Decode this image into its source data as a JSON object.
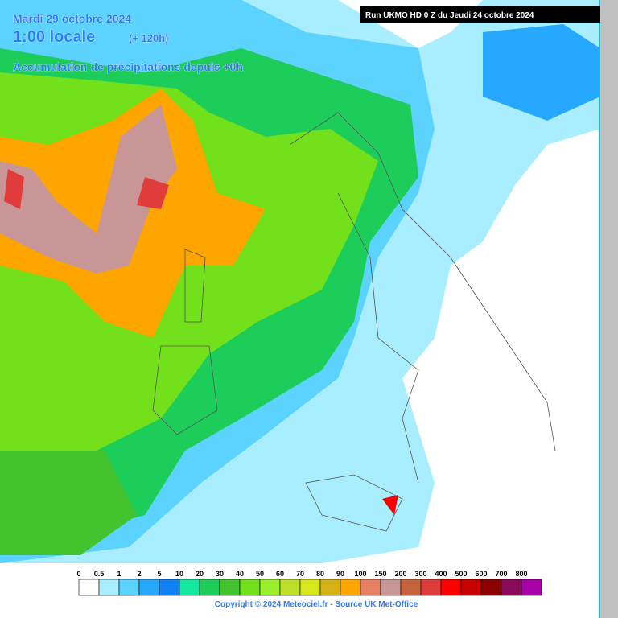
{
  "header": {
    "date": "Mardi 29 octobre 2024",
    "time": "1:00 locale",
    "offset": "(+ 120h)",
    "subtitle": "Accumulation de précipitations depuis +0h",
    "run": "Run UKMO HD 0 Z du Jeudi 24 octobre 2024"
  },
  "legend": {
    "items": [
      {
        "label": "0",
        "color": "#ffffff"
      },
      {
        "label": "0.5",
        "color": "#a8eeff"
      },
      {
        "label": "1",
        "color": "#5cd2ff"
      },
      {
        "label": "2",
        "color": "#27a8ff"
      },
      {
        "label": "5",
        "color": "#0f82f5"
      },
      {
        "label": "10",
        "color": "#15e8a0"
      },
      {
        "label": "20",
        "color": "#1ccd5a"
      },
      {
        "label": "30",
        "color": "#43c42e"
      },
      {
        "label": "40",
        "color": "#72e01a"
      },
      {
        "label": "50",
        "color": "#9aee2a"
      },
      {
        "label": "60",
        "color": "#bfe02a"
      },
      {
        "label": "70",
        "color": "#d6e81c"
      },
      {
        "label": "80",
        "color": "#d4b214"
      },
      {
        "label": "90",
        "color": "#ffa500"
      },
      {
        "label": "100",
        "color": "#e87f60"
      },
      {
        "label": "150",
        "color": "#c89696"
      },
      {
        "label": "200",
        "color": "#c8643c"
      },
      {
        "label": "300",
        "color": "#e13c3c"
      },
      {
        "label": "400",
        "color": "#ff0000"
      },
      {
        "label": "500",
        "color": "#c80000"
      },
      {
        "label": "600",
        "color": "#8c0000"
      },
      {
        "label": "700",
        "color": "#8c0a5a"
      },
      {
        "label": "800",
        "color": "#aa00aa"
      }
    ]
  },
  "footer": {
    "copyright": "Copyright © 2024 Meteociel.fr - Source UK Met-Office"
  }
}
